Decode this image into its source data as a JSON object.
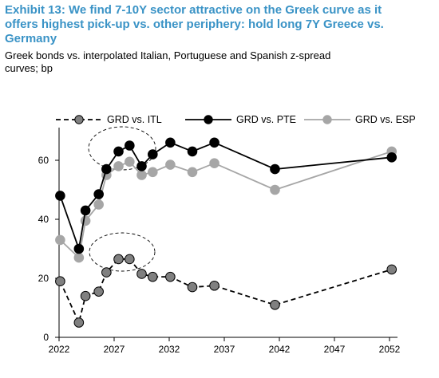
{
  "header": {
    "title": "Exhibit 13: We find 7-10Y sector attractive on the Greek curve as it\noffers highest pick-up vs. other periphery: hold long 7Y Greece vs.\nGermany",
    "subtitle": "Greek bonds vs. interpolated Italian, Portuguese and Spanish z-spread\ncurves; bp"
  },
  "chart_data": {
    "type": "line",
    "title": "Exhibit 13: We find 7-10Y sector attractive on the Greek curve as it offers highest pick-up vs. other periphery: hold long 7Y Greece vs. Germany",
    "subtitle": "Greek bonds vs. interpolated Italian, Portuguese and Spanish z-spread curves; bp",
    "xlabel": "",
    "ylabel": "",
    "xlim": [
      2022,
      2053
    ],
    "ylim": [
      0,
      70
    ],
    "x_ticks": [
      2022,
      2027,
      2032,
      2037,
      2042,
      2047,
      2052
    ],
    "y_ticks": [
      0,
      20,
      40,
      60
    ],
    "grid": false,
    "legend_position": "top",
    "series": [
      {
        "name": "GRD vs. ITL",
        "color": "#808080",
        "line_color": "#000000",
        "line_style": "dashed",
        "x": [
          2022.1,
          2023.8,
          2024.4,
          2025.6,
          2026.3,
          2027.4,
          2028.4,
          2029.5,
          2030.5,
          2032.1,
          2034.1,
          2036.1,
          2041.6,
          2052.2
        ],
        "y": [
          19,
          5,
          14,
          15.5,
          22,
          26.5,
          26.5,
          21.5,
          20.5,
          20.5,
          17,
          17.5,
          11,
          23
        ]
      },
      {
        "name": "GRD vs. PTE",
        "color": "#000000",
        "line_color": "#000000",
        "line_style": "solid",
        "x": [
          2022.1,
          2023.8,
          2024.4,
          2025.6,
          2026.3,
          2027.4,
          2028.4,
          2029.5,
          2030.5,
          2032.1,
          2034.1,
          2036.1,
          2041.6,
          2052.2
        ],
        "y": [
          48,
          30,
          43,
          48.5,
          57,
          63,
          65,
          58,
          62,
          66,
          63,
          66,
          57,
          61
        ]
      },
      {
        "name": "GRD vs. ESP",
        "color": "#a6a6a6",
        "line_color": "#a6a6a6",
        "line_style": "solid",
        "x": [
          2022.1,
          2023.8,
          2024.4,
          2025.6,
          2026.3,
          2027.4,
          2028.4,
          2029.5,
          2030.5,
          2032.1,
          2034.1,
          2036.1,
          2041.6,
          2052.2
        ],
        "y": [
          33,
          27,
          39.5,
          45,
          55,
          58,
          59.5,
          55,
          56,
          58.5,
          56,
          59,
          50,
          63
        ]
      }
    ],
    "annotations": [
      {
        "type": "dashed-ellipse",
        "around": "GRD vs. PTE peak 2026–2029"
      },
      {
        "type": "dashed-ellipse",
        "around": "GRD vs. ITL peak 2026–2029"
      }
    ]
  }
}
